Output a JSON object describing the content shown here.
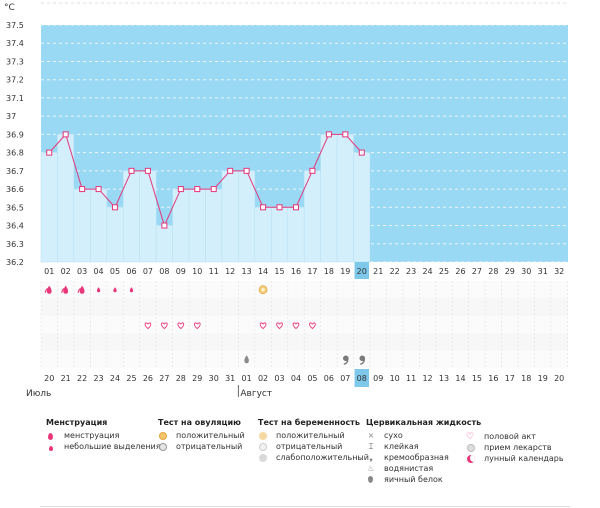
{
  "chart_data": {
    "type": "line",
    "yunit": "°C",
    "ylim": [
      36.2,
      37.5
    ],
    "yticks": [
      "36.2",
      "36.3",
      "36.4",
      "36.5",
      "36.6",
      "36.7",
      "36.8",
      "36.9",
      "37",
      "37.1",
      "37.2",
      "37.3",
      "37.4",
      "37.5"
    ],
    "cycle_days": [
      "01",
      "02",
      "03",
      "04",
      "05",
      "06",
      "07",
      "08",
      "09",
      "10",
      "11",
      "12",
      "13",
      "14",
      "15",
      "16",
      "17",
      "18",
      "19",
      "20",
      "21",
      "22",
      "23",
      "24",
      "25",
      "26",
      "27",
      "28",
      "29",
      "30",
      "31",
      "32"
    ],
    "current_day": "20",
    "temperatures": [
      36.8,
      36.9,
      36.6,
      36.6,
      36.5,
      36.7,
      36.7,
      36.4,
      36.6,
      36.6,
      36.6,
      36.7,
      36.7,
      36.5,
      36.5,
      36.5,
      36.7,
      36.9,
      36.9,
      36.8
    ],
    "dates": [
      "20",
      "21",
      "22",
      "23",
      "24",
      "25",
      "26",
      "27",
      "28",
      "29",
      "30",
      "31",
      "01",
      "02",
      "03",
      "04",
      "05",
      "06",
      "07",
      "08",
      "09",
      "10",
      "11",
      "12",
      "13",
      "14",
      "15",
      "16",
      "17",
      "18",
      "19",
      "20"
    ],
    "red_dates_idx": [
      1,
      2,
      8,
      9,
      15,
      16,
      22,
      23,
      29,
      30
    ],
    "current_date": "08",
    "months": [
      {
        "label": "Июль",
        "start_idx": 0
      },
      {
        "label": "Август",
        "start_idx": 12
      }
    ],
    "menstruation": [
      "big",
      "big",
      "big",
      "small",
      "small",
      "small"
    ],
    "ovulation_test_positive_idx": [
      13
    ],
    "intercourse_idx": [
      6,
      7,
      8,
      9,
      13,
      14,
      15,
      16
    ],
    "cervical_fluid": [
      {
        "idx": 12,
        "type": "egg-white"
      },
      {
        "idx": 18,
        "type": "creamy"
      },
      {
        "idx": 19,
        "type": "creamy"
      }
    ]
  },
  "legend": {
    "menstruation": {
      "title": "Менструация",
      "items": [
        "менструация",
        "небольшие выделения"
      ]
    },
    "ovulation": {
      "title": "Тест на овуляцию",
      "items": [
        "положительный",
        "отрицательный"
      ]
    },
    "pregnancy": {
      "title": "Тест на беременность",
      "items": [
        "положительный",
        "отрицательный",
        "слабоположительный"
      ]
    },
    "fluid": {
      "title": "Цервикальная жидкость",
      "items": [
        "сухо",
        "клейкая",
        "кремообразная",
        "водянистая",
        "яичный белок"
      ]
    },
    "other": {
      "items": [
        "половой акт",
        "прием лекарств",
        "лунный календарь"
      ]
    }
  },
  "colors": {
    "plot_bg": "#9ad9f4",
    "bar_fill": "#d3effc",
    "line": "#e5367a",
    "marker_red": "#e8377a",
    "highlight": "#7ec8ea"
  }
}
